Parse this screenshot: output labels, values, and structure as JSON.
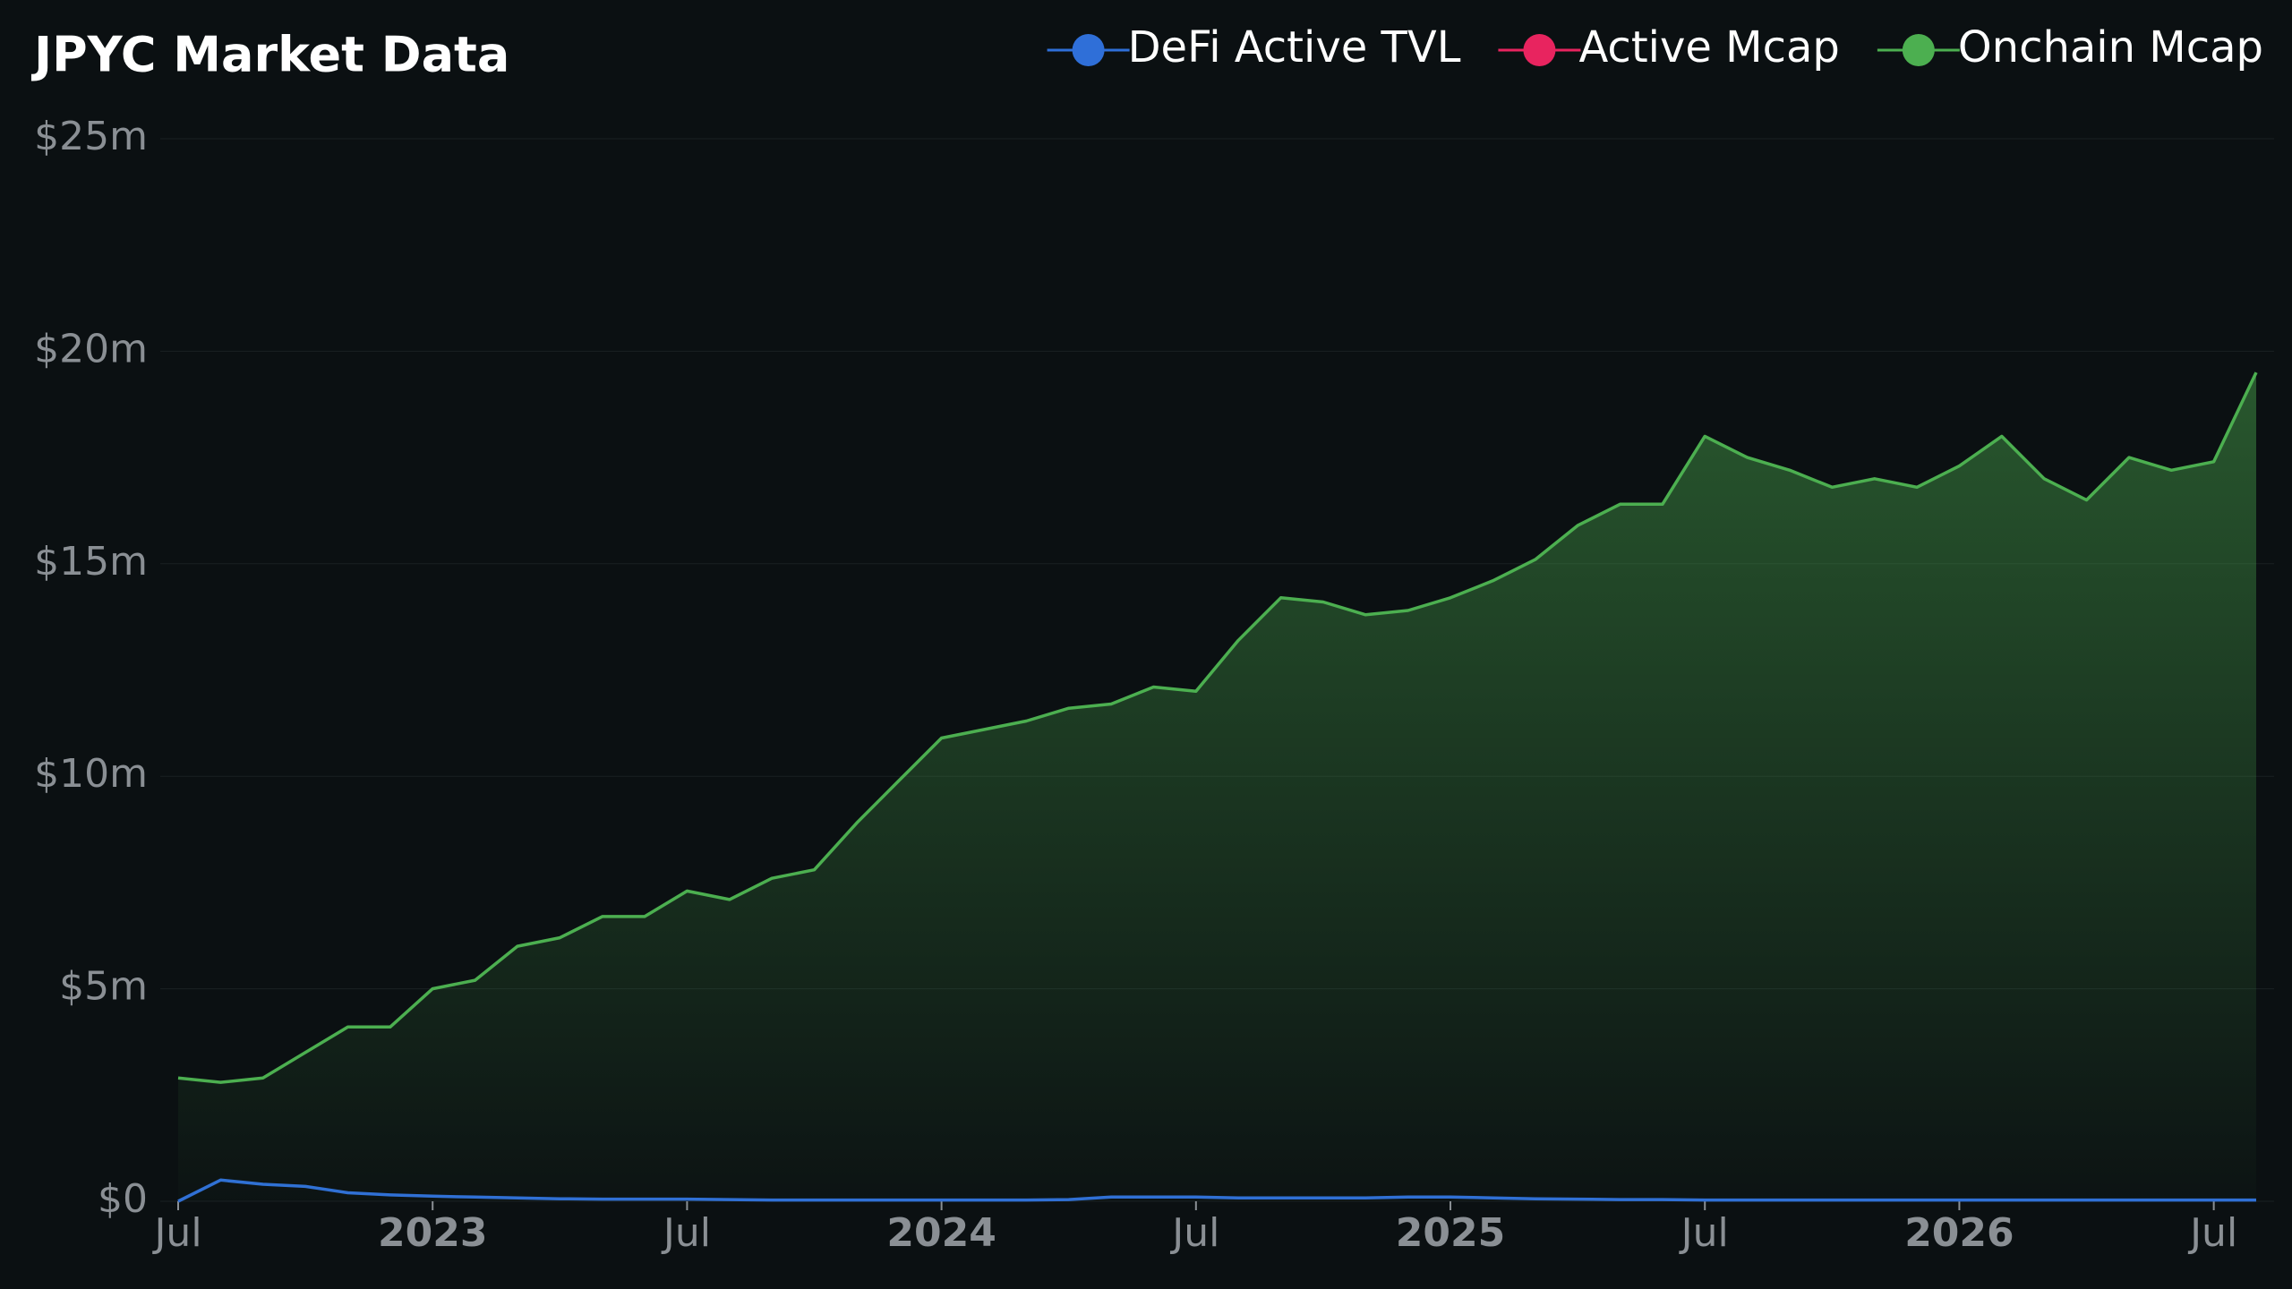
{
  "chart_data": {
    "type": "line",
    "title": "JPYC Market Data",
    "x": [
      "2022-07",
      "2022-08",
      "2022-09",
      "2022-10",
      "2022-11",
      "2022-12",
      "2023-01",
      "2023-02",
      "2023-03",
      "2023-04",
      "2023-05",
      "2023-06",
      "2023-07",
      "2023-08",
      "2023-09",
      "2023-10",
      "2023-11",
      "2023-12",
      "2024-01",
      "2024-02",
      "2024-03",
      "2024-04",
      "2024-05",
      "2024-06",
      "2024-07",
      "2024-08",
      "2024-09",
      "2024-10",
      "2024-11",
      "2024-12",
      "2025-01",
      "2025-02",
      "2025-03",
      "2025-04",
      "2025-05",
      "2025-06",
      "2025-07",
      "2025-08",
      "2025-09",
      "2025-10",
      "2025-11",
      "2025-12",
      "2026-01",
      "2026-02",
      "2026-03",
      "2026-04",
      "2026-05",
      "2026-06",
      "2026-07",
      "2026-08"
    ],
    "series": [
      {
        "name": "DeFi Active TVL",
        "color": "#2f6fd8",
        "values": [
          0,
          0.5,
          0.4,
          0.35,
          0.2,
          0.15,
          0.12,
          0.1,
          0.08,
          0.06,
          0.05,
          0.05,
          0.05,
          0.04,
          0.03,
          0.03,
          0.03,
          0.03,
          0.03,
          0.03,
          0.03,
          0.04,
          0.1,
          0.1,
          0.1,
          0.08,
          0.08,
          0.08,
          0.08,
          0.1,
          0.1,
          0.08,
          0.06,
          0.05,
          0.04,
          0.04,
          0.03,
          0.03,
          0.03,
          0.03,
          0.03,
          0.03,
          0.03,
          0.03,
          0.03,
          0.03,
          0.03,
          0.03,
          0.03,
          0.03
        ]
      },
      {
        "name": "Active Mcap",
        "color": "#e8245f",
        "values": [
          null,
          null,
          null,
          null,
          null,
          null,
          null,
          null,
          null,
          null,
          null,
          null,
          null,
          null,
          null,
          null,
          null,
          null,
          null,
          null,
          null,
          null,
          null,
          null,
          null,
          null,
          null,
          null,
          null,
          null,
          null,
          null,
          null,
          null,
          null,
          null,
          null,
          null,
          null,
          null,
          null,
          null,
          null,
          null,
          null,
          null,
          null,
          null,
          null,
          null
        ]
      },
      {
        "name": "Onchain Mcap",
        "color": "#4caf50",
        "values": [
          2.9,
          2.8,
          2.9,
          3.5,
          4.1,
          4.1,
          5.0,
          5.2,
          6.0,
          6.2,
          6.7,
          6.7,
          7.3,
          7.1,
          7.6,
          7.8,
          8.9,
          9.9,
          10.9,
          11.1,
          11.3,
          11.6,
          11.7,
          12.1,
          12.0,
          13.2,
          14.2,
          14.1,
          13.8,
          13.9,
          14.2,
          14.6,
          15.1,
          15.9,
          16.4,
          16.4,
          18.0,
          17.5,
          17.2,
          16.8,
          17.0,
          16.8,
          17.3,
          18.0,
          17.0,
          16.5,
          17.5,
          17.2,
          17.4,
          19.5
        ]
      }
    ],
    "xlim": [
      "2022-07",
      "2026-08"
    ],
    "xticks": [
      {
        "value": "2022-07",
        "label": "Jul"
      },
      {
        "value": "2023-01",
        "label": "2023"
      },
      {
        "value": "2023-07",
        "label": "Jul"
      },
      {
        "value": "2024-01",
        "label": "2024"
      },
      {
        "value": "2024-07",
        "label": "Jul"
      },
      {
        "value": "2025-01",
        "label": "2025"
      },
      {
        "value": "2025-07",
        "label": "Jul"
      },
      {
        "value": "2026-01",
        "label": "2026"
      },
      {
        "value": "2026-07",
        "label": "Jul"
      }
    ],
    "ylim": [
      0,
      25
    ],
    "yticks": [
      {
        "value": 0,
        "label": "$0"
      },
      {
        "value": 5,
        "label": "$5m"
      },
      {
        "value": 10,
        "label": "$10m"
      },
      {
        "value": 15,
        "label": "$15m"
      },
      {
        "value": 20,
        "label": "$20m"
      },
      {
        "value": 25,
        "label": "$25m"
      }
    ],
    "grid": true,
    "legend": "top-right"
  }
}
